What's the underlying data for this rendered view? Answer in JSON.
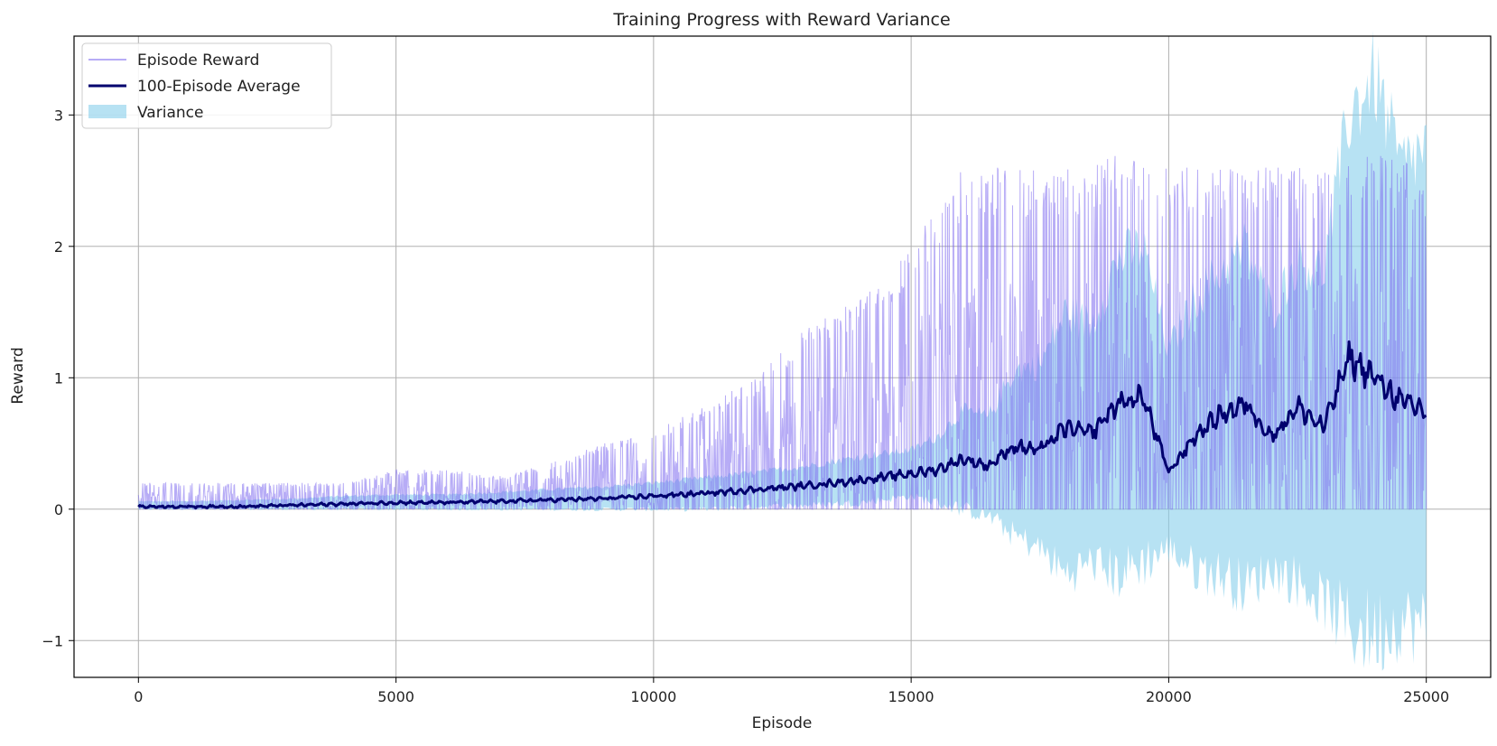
{
  "chart_data": {
    "type": "line",
    "title": "Training Progress with Reward Variance",
    "xlabel": "Episode",
    "ylabel": "Reward",
    "xlim": [
      -1250,
      26250
    ],
    "ylim": [
      -1.28,
      3.6
    ],
    "x_ticks": [
      0,
      5000,
      10000,
      15000,
      20000,
      25000
    ],
    "y_ticks": [
      -1,
      0,
      1,
      2,
      3
    ],
    "x_tick_labels": [
      "0",
      "5000",
      "10000",
      "15000",
      "20000",
      "25000"
    ],
    "y_tick_labels": [
      "−1",
      "0",
      "1",
      "2",
      "3"
    ],
    "grid": true,
    "legend_position": "top-left",
    "legend": [
      "Episode Reward",
      "100-Episode Average",
      "Variance"
    ],
    "colors": {
      "episode_reward": "#7b68ee",
      "average": "#00006e",
      "variance": "#87ceeb"
    },
    "series": [
      {
        "name": "Episode Reward",
        "style": "thin line",
        "x": [
          0,
          1000,
          2000,
          3000,
          4000,
          5000,
          6000,
          7000,
          8000,
          9000,
          10000,
          11000,
          12000,
          13000,
          14000,
          15000,
          16000,
          17000,
          18000,
          19000,
          20000,
          21000,
          22000,
          23000,
          24000,
          25000
        ],
        "upper_envelope": [
          0.2,
          0.2,
          0.2,
          0.2,
          0.2,
          0.3,
          0.3,
          0.25,
          0.35,
          0.5,
          0.6,
          0.8,
          1.0,
          1.4,
          1.6,
          2.0,
          2.6,
          2.6,
          2.6,
          2.7,
          2.6,
          2.6,
          2.6,
          2.6,
          2.7,
          2.6
        ],
        "lower_envelope": [
          0,
          0,
          0,
          0,
          0,
          0,
          0,
          0,
          0,
          0,
          0,
          0,
          0,
          0,
          0,
          0,
          0,
          0,
          0,
          0,
          0,
          0,
          0,
          0,
          0,
          0
        ]
      },
      {
        "name": "100-Episode Average",
        "style": "thick line",
        "x": [
          0,
          1000,
          2000,
          3000,
          4000,
          5000,
          6000,
          7000,
          8000,
          9000,
          10000,
          11000,
          12000,
          13000,
          14000,
          15000,
          15500,
          16000,
          16500,
          17000,
          17500,
          18000,
          18500,
          19000,
          19500,
          20000,
          20500,
          21000,
          21500,
          22000,
          22500,
          23000,
          23500,
          24000,
          24500,
          25000
        ],
        "values": [
          0.02,
          0.02,
          0.02,
          0.03,
          0.04,
          0.05,
          0.05,
          0.06,
          0.07,
          0.08,
          0.1,
          0.12,
          0.15,
          0.18,
          0.22,
          0.27,
          0.3,
          0.38,
          0.33,
          0.48,
          0.45,
          0.62,
          0.58,
          0.8,
          0.86,
          0.28,
          0.55,
          0.72,
          0.8,
          0.55,
          0.78,
          0.62,
          1.15,
          1.0,
          0.82,
          0.75
        ]
      },
      {
        "name": "Variance",
        "style": "filled band",
        "x": [
          0,
          1000,
          2000,
          3000,
          4000,
          5000,
          6000,
          7000,
          8000,
          9000,
          10000,
          11000,
          12000,
          13000,
          14000,
          15000,
          15500,
          16000,
          16500,
          17000,
          17500,
          18000,
          18500,
          19000,
          19500,
          20000,
          20500,
          21000,
          21500,
          22000,
          22500,
          23000,
          23500,
          24000,
          24500,
          25000
        ],
        "upper": [
          0.06,
          0.06,
          0.07,
          0.08,
          0.1,
          0.11,
          0.11,
          0.13,
          0.15,
          0.17,
          0.2,
          0.24,
          0.28,
          0.33,
          0.4,
          0.45,
          0.55,
          0.75,
          0.7,
          1.05,
          1.1,
          1.5,
          1.4,
          1.9,
          2.0,
          1.2,
          1.6,
          1.8,
          2.0,
          1.5,
          1.9,
          1.8,
          3.0,
          3.3,
          2.6,
          2.75
        ],
        "lower": [
          0.0,
          0.0,
          0.0,
          0.0,
          0.0,
          0.0,
          0.0,
          0.0,
          0.0,
          0.0,
          0.0,
          0.0,
          0.02,
          0.03,
          0.05,
          0.1,
          0.05,
          0.0,
          -0.05,
          -0.2,
          -0.3,
          -0.5,
          -0.4,
          -0.5,
          -0.4,
          -0.3,
          -0.45,
          -0.5,
          -0.6,
          -0.45,
          -0.55,
          -0.7,
          -0.9,
          -0.95,
          -0.85,
          -0.9
        ]
      }
    ]
  }
}
